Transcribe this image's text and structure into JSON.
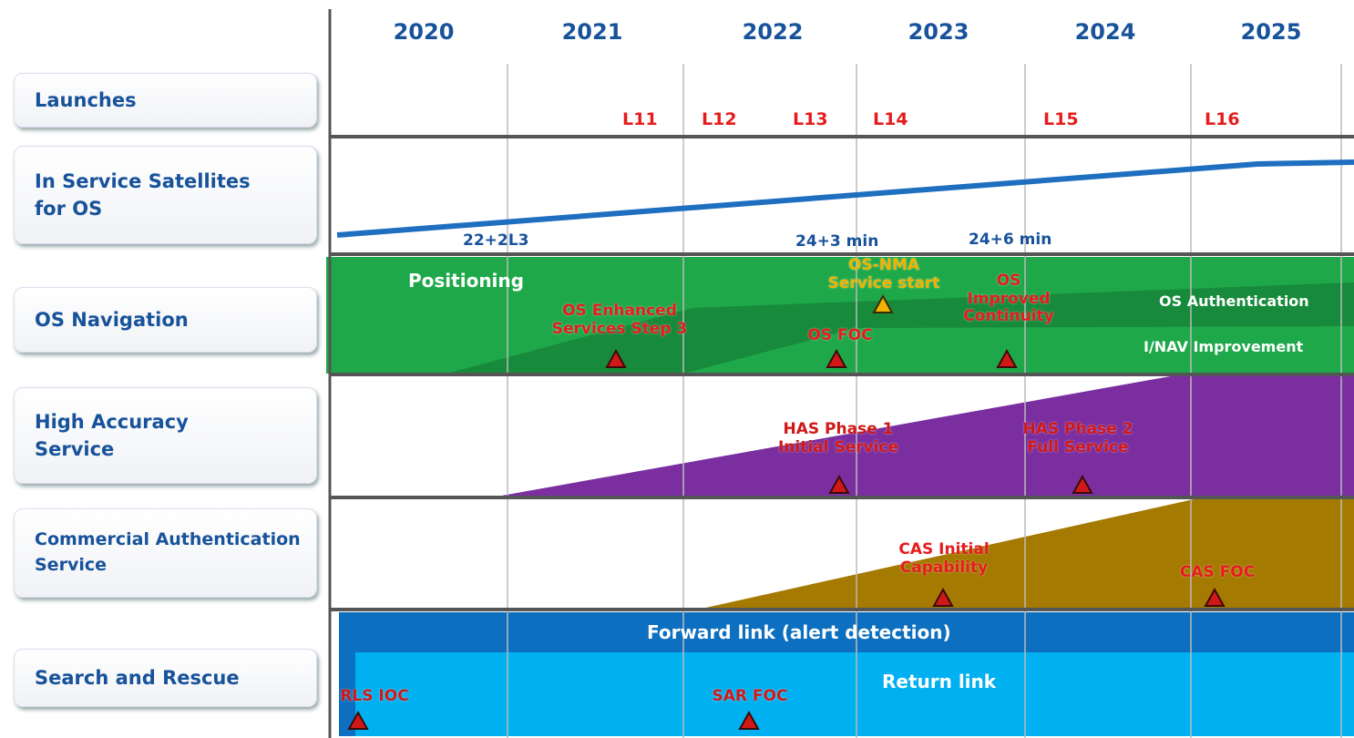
{
  "years": [
    "2020",
    "2021",
    "2022",
    "2023",
    "2024",
    "2025"
  ],
  "rows": [
    "Launches",
    "In Service Satellites for OS",
    "OS Navigation",
    "High Accuracy Service",
    "Commercial Authentication Service",
    "Search and Rescue"
  ],
  "launches": [
    "L11",
    "L12",
    "L13",
    "L14",
    "L15",
    "L16"
  ],
  "satellites": [
    "22+2L3",
    "24+3 min",
    "24+6 min"
  ],
  "bands": [
    "Positioning",
    "OS Authentication",
    "I/NAV Improvement",
    "Forward link (alert detection)",
    "Return link"
  ],
  "milestones": [
    {
      "lines": [
        "OS Enhanced",
        "Services Step 3"
      ]
    },
    {
      "lines": [
        "OS-NMA",
        "Service start"
      ]
    },
    {
      "lines": [
        "OS FOC"
      ]
    },
    {
      "lines": [
        "OS",
        "Improved",
        "Continuity"
      ]
    },
    {
      "lines": [
        "HAS Phase 1",
        "Initial Service"
      ]
    },
    {
      "lines": [
        "HAS Phase 2",
        "Full Service"
      ]
    },
    {
      "lines": [
        "CAS Initial",
        "Capability"
      ]
    },
    {
      "lines": [
        "CAS FOC"
      ]
    },
    {
      "lines": [
        "RLS IOC"
      ]
    },
    {
      "lines": [
        "SAR FOC"
      ]
    }
  ]
}
